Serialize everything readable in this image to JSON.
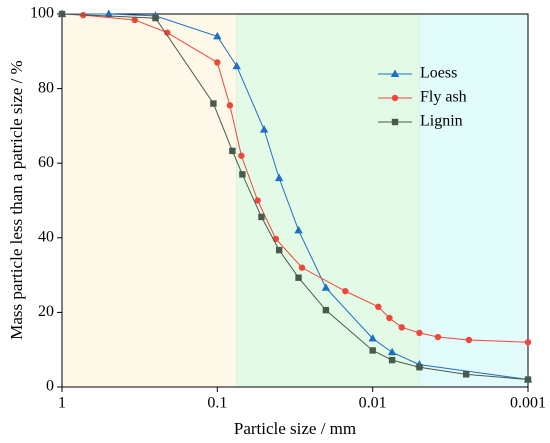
{
  "chart_data": {
    "type": "line",
    "log_x": true,
    "x_label": "Particle size / mm",
    "y_label": "Mass particle less than a patricle size / %",
    "xlim": [
      1,
      0.001
    ],
    "xticks": [
      1,
      0.1,
      0.01,
      0.001
    ],
    "ylim": [
      0,
      100
    ],
    "yticks": [
      0,
      20,
      40,
      60,
      80,
      100
    ],
    "legend": "upper right",
    "regions": [
      {
        "from": 1,
        "to": 0.075,
        "color": "#fdf8e8"
      },
      {
        "from": 0.075,
        "to": 0.005,
        "color": "#e3fbe6"
      },
      {
        "from": 0.005,
        "to": 0.001,
        "color": "#e2fbfb"
      }
    ],
    "series": [
      {
        "name": "Loess",
        "color": "#1f6fc5",
        "marker": "triangle",
        "x": [
          1,
          0.5,
          0.25,
          0.1,
          0.075,
          0.05,
          0.04,
          0.03,
          0.02,
          0.01,
          0.0075,
          0.005,
          0.001
        ],
        "values": [
          100,
          100,
          99.5,
          94,
          86,
          69,
          56,
          42,
          26.6,
          13,
          9.3,
          6,
          2
        ]
      },
      {
        "name": "Fly ash",
        "color": "#f0463c",
        "marker": "circle",
        "x": [
          1,
          0.73,
          0.34,
          0.21,
          0.1,
          0.083,
          0.07,
          0.055,
          0.042,
          0.0285,
          0.015,
          0.0092,
          0.0078,
          0.0065,
          0.005,
          0.0038,
          0.0024,
          0.001
        ],
        "values": [
          100,
          99.7,
          98.4,
          95,
          87,
          75.5,
          62,
          50,
          39.7,
          32,
          25.7,
          21.5,
          18.5,
          16,
          14.5,
          13.4,
          12.6,
          12
        ]
      },
      {
        "name": "Lignin",
        "color": "#4a5a4a",
        "marker": "square",
        "x": [
          1,
          0.25,
          0.106,
          0.08,
          0.069,
          0.052,
          0.04,
          0.03,
          0.02,
          0.01,
          0.0075,
          0.005,
          0.0025,
          0.001
        ],
        "values": [
          100,
          98.9,
          76,
          63.3,
          57,
          45.6,
          36.7,
          29.3,
          20.6,
          9.8,
          7.2,
          5.3,
          3.4,
          2
        ]
      }
    ]
  }
}
